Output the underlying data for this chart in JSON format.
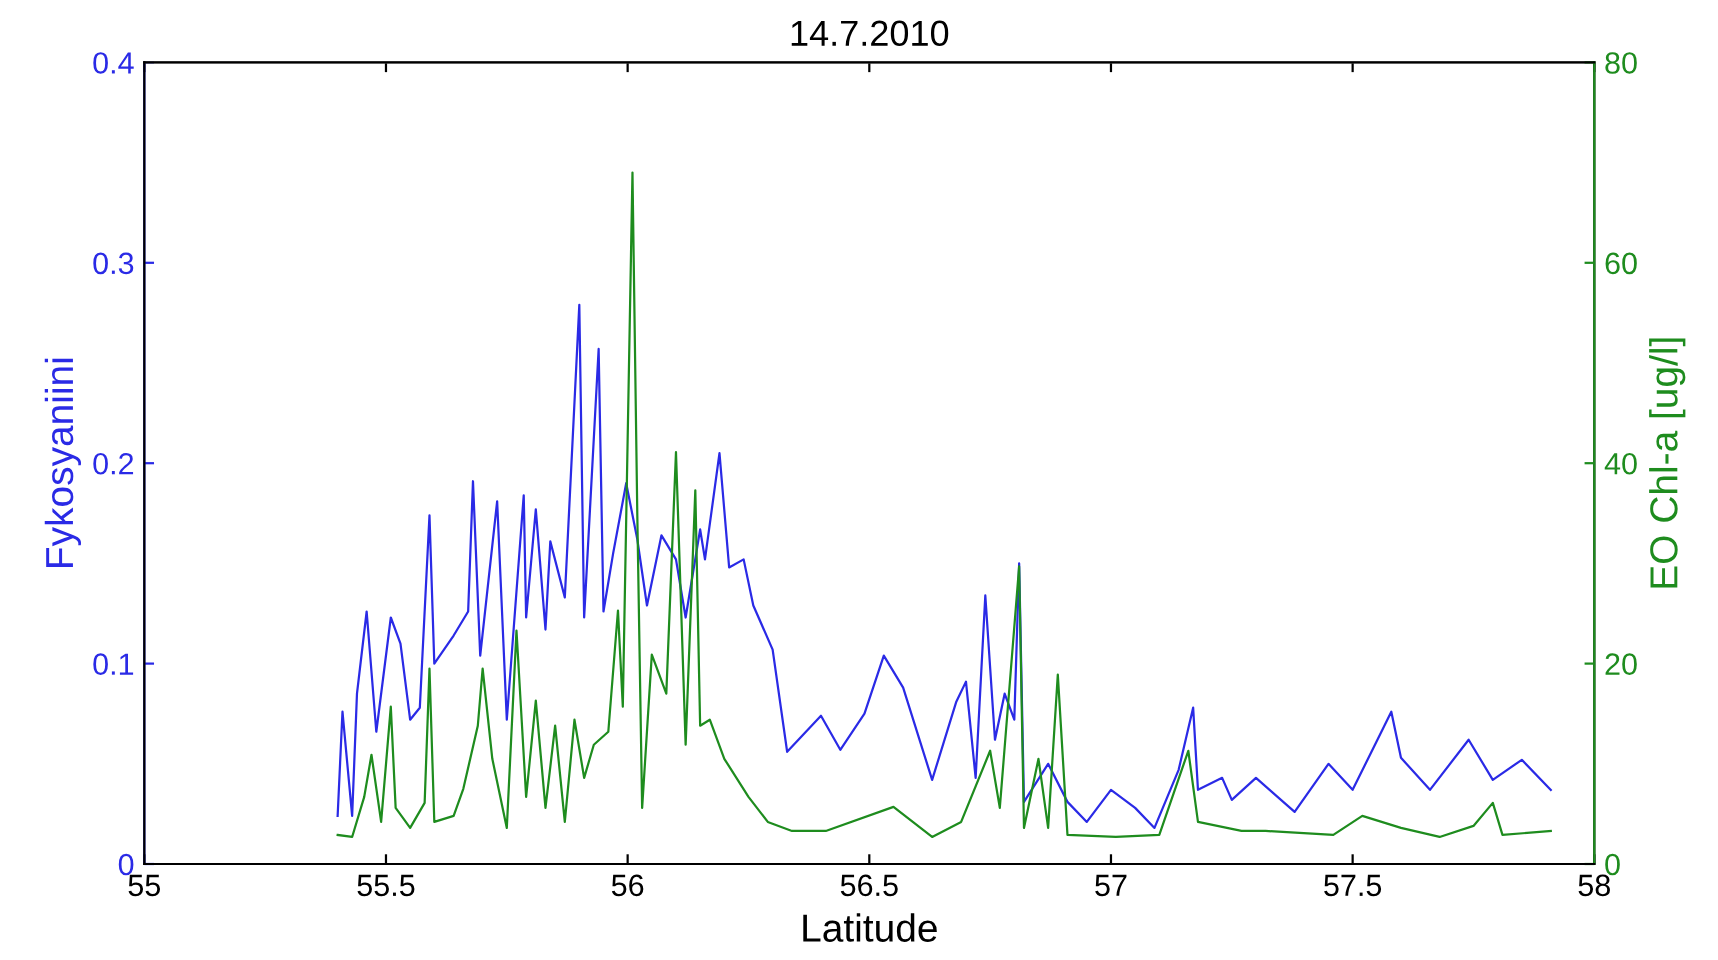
{
  "chart_data": {
    "type": "line",
    "title": "14.7.2010",
    "xlabel": "Latitude",
    "ylabel": "Fykosyaniini",
    "y2label": "EO Chl-a [ug/l]",
    "xlim": [
      55,
      58
    ],
    "xticks": [
      55,
      55.5,
      56,
      56.5,
      57,
      57.5,
      58
    ],
    "ylim": [
      0,
      0.4
    ],
    "yticks": [
      0,
      0.1,
      0.2,
      0.3,
      0.4
    ],
    "y2lim": [
      0,
      80
    ],
    "y2ticks": [
      0,
      20,
      40,
      60,
      80
    ],
    "grid": false,
    "marker": "none",
    "line_style": "solid",
    "series": [
      {
        "axis": "y",
        "color": "#2a2ae6",
        "x": [
          55.4,
          55.41,
          55.43,
          55.44,
          55.46,
          55.48,
          55.51,
          55.53,
          55.55,
          55.57,
          55.59,
          55.6,
          55.64,
          55.67,
          55.68,
          55.695,
          55.73,
          55.75,
          55.785,
          55.79,
          55.81,
          55.83,
          55.84,
          55.87,
          55.9,
          55.91,
          55.94,
          55.95,
          55.97,
          55.997,
          56.02,
          56.04,
          56.07,
          56.1,
          56.12,
          56.15,
          56.16,
          56.19,
          56.21,
          56.24,
          56.26,
          56.3,
          56.33,
          56.4,
          56.44,
          56.49,
          56.53,
          56.57,
          56.63,
          56.68,
          56.7,
          56.72,
          56.74,
          56.76,
          56.78,
          56.8,
          56.81,
          56.82,
          56.87,
          56.91,
          56.95,
          57.0,
          57.05,
          57.09,
          57.14,
          57.17,
          57.18,
          57.23,
          57.25,
          57.3,
          57.38,
          57.45,
          57.5,
          57.58,
          57.6,
          57.66,
          57.74,
          57.79,
          57.85,
          57.91
        ],
        "values": [
          0.024,
          0.076,
          0.024,
          0.085,
          0.126,
          0.066,
          0.123,
          0.11,
          0.072,
          0.078,
          0.174,
          0.1,
          0.114,
          0.126,
          0.191,
          0.104,
          0.181,
          0.072,
          0.184,
          0.123,
          0.177,
          0.117,
          0.161,
          0.133,
          0.279,
          0.123,
          0.257,
          0.126,
          0.155,
          0.19,
          0.162,
          0.129,
          0.164,
          0.152,
          0.123,
          0.167,
          0.152,
          0.205,
          0.148,
          0.152,
          0.129,
          0.107,
          0.056,
          0.074,
          0.057,
          0.075,
          0.104,
          0.088,
          0.042,
          0.081,
          0.091,
          0.043,
          0.134,
          0.062,
          0.085,
          0.072,
          0.15,
          0.031,
          0.05,
          0.031,
          0.021,
          0.037,
          0.028,
          0.018,
          0.047,
          0.078,
          0.037,
          0.043,
          0.032,
          0.043,
          0.026,
          0.05,
          0.037,
          0.076,
          0.053,
          0.037,
          0.062,
          0.042,
          0.052,
          0.037
        ]
      },
      {
        "axis": "y2",
        "color": "#1e8c1e",
        "x": [
          55.4,
          55.43,
          55.455,
          55.47,
          55.49,
          55.51,
          55.52,
          55.55,
          55.58,
          55.59,
          55.6,
          55.64,
          55.66,
          55.69,
          55.7,
          55.72,
          55.75,
          55.77,
          55.79,
          55.81,
          55.83,
          55.85,
          55.87,
          55.89,
          55.91,
          55.93,
          55.96,
          55.98,
          55.99,
          56.01,
          56.02,
          56.03,
          56.05,
          56.08,
          56.1,
          56.12,
          56.14,
          56.15,
          56.17,
          56.2,
          56.25,
          56.29,
          56.34,
          56.41,
          56.55,
          56.63,
          56.69,
          56.75,
          56.77,
          56.81,
          56.82,
          56.85,
          56.87,
          56.89,
          56.91,
          57.01,
          57.1,
          57.16,
          57.18,
          57.27,
          57.32,
          57.46,
          57.52,
          57.6,
          57.68,
          57.75,
          57.79,
          57.81,
          57.91
        ],
        "values": [
          2.9,
          2.7,
          6.7,
          10.9,
          4.2,
          15.7,
          5.6,
          3.6,
          6.1,
          19.5,
          4.2,
          4.8,
          7.5,
          13.8,
          19.5,
          10.5,
          3.6,
          23.3,
          6.7,
          16.3,
          5.6,
          13.8,
          4.2,
          14.4,
          8.6,
          11.9,
          13.2,
          25.3,
          15.7,
          69,
          34.8,
          5.6,
          20.9,
          17.0,
          41.1,
          11.9,
          37.3,
          13.8,
          14.4,
          10.5,
          6.7,
          4.2,
          3.3,
          3.3,
          5.7,
          2.7,
          4.2,
          11.3,
          5.6,
          29.7,
          3.6,
          10.5,
          3.6,
          18.9,
          2.9,
          2.7,
          2.9,
          11.3,
          4.2,
          3.3,
          3.3,
          2.9,
          4.8,
          3.6,
          2.7,
          3.8,
          6.1,
          2.9,
          3.3
        ]
      }
    ]
  }
}
